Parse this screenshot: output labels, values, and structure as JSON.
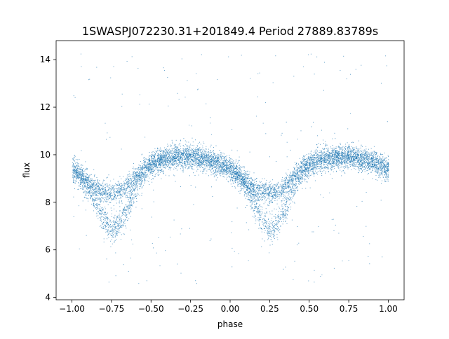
{
  "chart_data": {
    "type": "scatter",
    "title": "1SWASPJ072230.31+201849.4 Period 27889.83789s",
    "xlabel": "phase",
    "ylabel": "flux",
    "xlim": [
      -1.1,
      1.1
    ],
    "ylim": [
      3.9,
      14.8
    ],
    "xticks": [
      -1.0,
      -0.75,
      -0.5,
      -0.25,
      0.0,
      0.25,
      0.5,
      0.75,
      1.0
    ],
    "xtick_labels": [
      "−1.00",
      "−0.75",
      "−0.50",
      "−0.25",
      "0.00",
      "0.25",
      "0.50",
      "0.75",
      "1.00"
    ],
    "yticks": [
      4,
      6,
      8,
      10,
      12,
      14
    ],
    "ytick_labels": [
      "4",
      "6",
      "8",
      "10",
      "12",
      "14"
    ],
    "grid": false,
    "point_color": "#1f77b4",
    "series": [
      {
        "description": "folded light curve (repeats with period 1.0 in phase)",
        "x": [
          -1.0,
          -0.95,
          -0.9,
          -0.85,
          -0.8,
          -0.75,
          -0.7,
          -0.65,
          -0.6,
          -0.55,
          -0.5,
          -0.45,
          -0.4,
          -0.35,
          -0.3,
          -0.25,
          -0.2,
          -0.15,
          -0.1,
          -0.05,
          0.0,
          0.05,
          0.1,
          0.15,
          0.2,
          0.25,
          0.3,
          0.35,
          0.4,
          0.45,
          0.5,
          0.55,
          0.6,
          0.65,
          0.7,
          0.75,
          0.8,
          0.85,
          0.9,
          0.95,
          1.0
        ],
        "upper_branch_flux": [
          9.4,
          9.2,
          8.9,
          8.6,
          8.45,
          8.4,
          8.45,
          8.7,
          9.1,
          9.4,
          9.6,
          9.75,
          9.85,
          9.9,
          9.95,
          9.95,
          9.9,
          9.8,
          9.7,
          9.55,
          9.4,
          9.2,
          8.9,
          8.6,
          8.45,
          8.4,
          8.45,
          8.7,
          9.1,
          9.4,
          9.6,
          9.75,
          9.85,
          9.9,
          9.95,
          9.95,
          9.9,
          9.8,
          9.7,
          9.55,
          9.4
        ],
        "lower_branch_flux": [
          9.4,
          9.1,
          8.6,
          8.0,
          7.3,
          6.8,
          7.1,
          7.8,
          8.6,
          9.2,
          9.6,
          9.75,
          9.85,
          9.9,
          9.95,
          9.95,
          9.9,
          9.8,
          9.7,
          9.55,
          9.4,
          9.1,
          8.6,
          8.0,
          7.3,
          6.8,
          7.1,
          7.8,
          8.6,
          9.2,
          9.6,
          9.75,
          9.85,
          9.9,
          9.95,
          9.95,
          9.9,
          9.8,
          9.7,
          9.55,
          9.4
        ],
        "outlier_flux_range": [
          4.3,
          14.3
        ]
      }
    ]
  }
}
